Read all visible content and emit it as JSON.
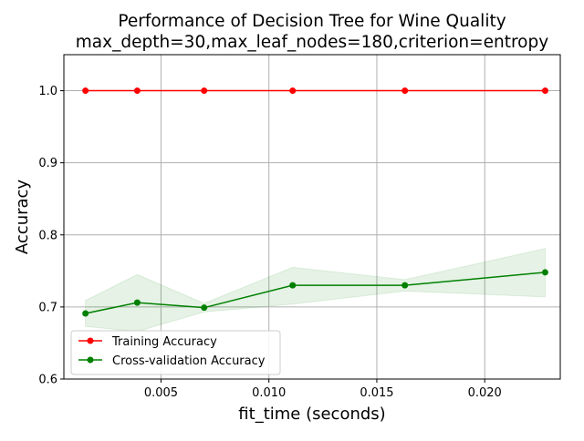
{
  "chart_data": {
    "type": "line",
    "title": "Performance of Decision Tree for Wine Quality",
    "subtitle": "max_depth=30,max_leaf_nodes=180,criterion=entropy",
    "xlabel": "fit_time (seconds)",
    "ylabel": "Accuracy",
    "xlim": [
      0.0005,
      0.0235
    ],
    "ylim": [
      0.6,
      1.05
    ],
    "x_ticks": [
      0.005,
      0.01,
      0.015,
      0.02
    ],
    "x_tick_labels": [
      "0.005",
      "0.010",
      "0.015",
      "0.020"
    ],
    "y_ticks": [
      0.6,
      0.7,
      0.8,
      0.9,
      1.0
    ],
    "y_tick_labels": [
      "0.6",
      "0.7",
      "0.8",
      "0.9",
      "1.0"
    ],
    "grid": true,
    "legend_position": "lower-left",
    "series": [
      {
        "name": "Training Accuracy",
        "color": "#ff0000",
        "x": [
          0.0015,
          0.0039,
          0.007,
          0.0111,
          0.0163,
          0.0228
        ],
        "y": [
          1.0,
          1.0,
          1.0,
          1.0,
          1.0,
          1.0
        ],
        "band_lower": [
          1.0,
          1.0,
          1.0,
          1.0,
          1.0,
          1.0
        ],
        "band_upper": [
          1.0,
          1.0,
          1.0,
          1.0,
          1.0,
          1.0
        ]
      },
      {
        "name": "Cross-validation Accuracy",
        "color": "#008000",
        "band_color": "#008000",
        "x": [
          0.0015,
          0.0039,
          0.007,
          0.0111,
          0.0163,
          0.0228
        ],
        "y": [
          0.691,
          0.706,
          0.699,
          0.73,
          0.73,
          0.748
        ],
        "band_lower": [
          0.673,
          0.666,
          0.693,
          0.704,
          0.722,
          0.714
        ],
        "band_upper": [
          0.709,
          0.745,
          0.705,
          0.755,
          0.738,
          0.781
        ]
      }
    ]
  }
}
